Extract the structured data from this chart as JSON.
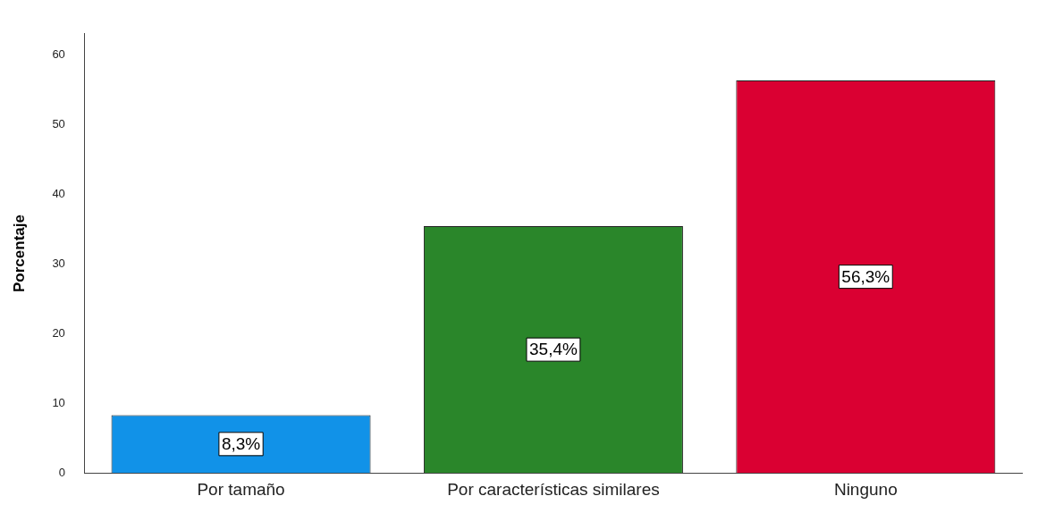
{
  "chart_data": {
    "type": "bar",
    "ylabel": "Porcentaje",
    "categories": [
      "Por tamaño",
      "Por características similares",
      "Ninguno"
    ],
    "values": [
      8.3,
      35.4,
      56.3
    ],
    "colors": [
      "#1192e8",
      "#2a862a",
      "#da0032"
    ],
    "value_labels": [
      "8,3%",
      "35,4%",
      "56,3%"
    ],
    "ylim": [
      0,
      63
    ],
    "yticks": [
      0,
      10,
      20,
      30,
      40,
      50,
      60
    ],
    "grid": false,
    "legend": false
  }
}
